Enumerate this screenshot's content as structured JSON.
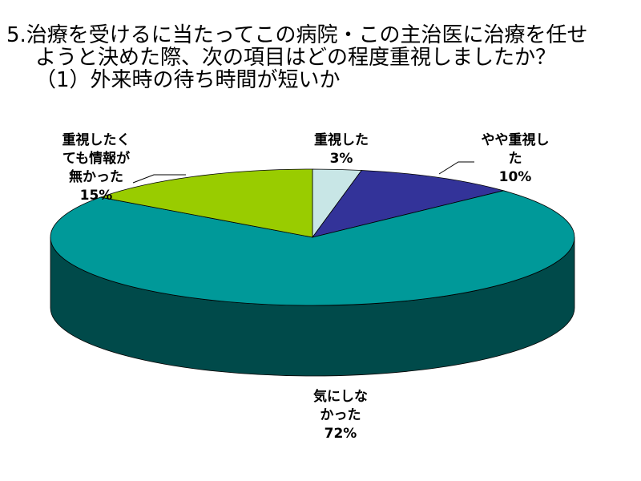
{
  "title_lines": [
    "5.治療を受けるに当たってこの病院・この主治医に治療を任せ",
    "ようと決めた際、次の項目はどの程度重視しましたか？",
    "（1）外来時の待ち時間が短いか"
  ],
  "chart_data": {
    "type": "pie",
    "style": "3d-pie",
    "categories": [
      "重視した",
      "やや重視した",
      "気にしなかった",
      "重視したくても情報が無かった"
    ],
    "values": [
      3,
      10,
      72,
      15
    ],
    "slice_labels": [
      {
        "lines": [
          "重視した"
        ],
        "pct": "3%"
      },
      {
        "lines": [
          "やや重視し",
          "た"
        ],
        "pct": "10%"
      },
      {
        "lines": [
          "気にしな",
          "かった"
        ],
        "pct": "72%"
      },
      {
        "lines": [
          "重視したく",
          "ても情報が",
          "無かった"
        ],
        "pct": "15%"
      }
    ],
    "colors": [
      "#c8e6e6",
      "#333399",
      "#009999",
      "#99cc00"
    ],
    "side_colors": [
      "#7a9f9f",
      "#1d1d60",
      "#004a4a",
      "#4f6b00"
    ]
  }
}
